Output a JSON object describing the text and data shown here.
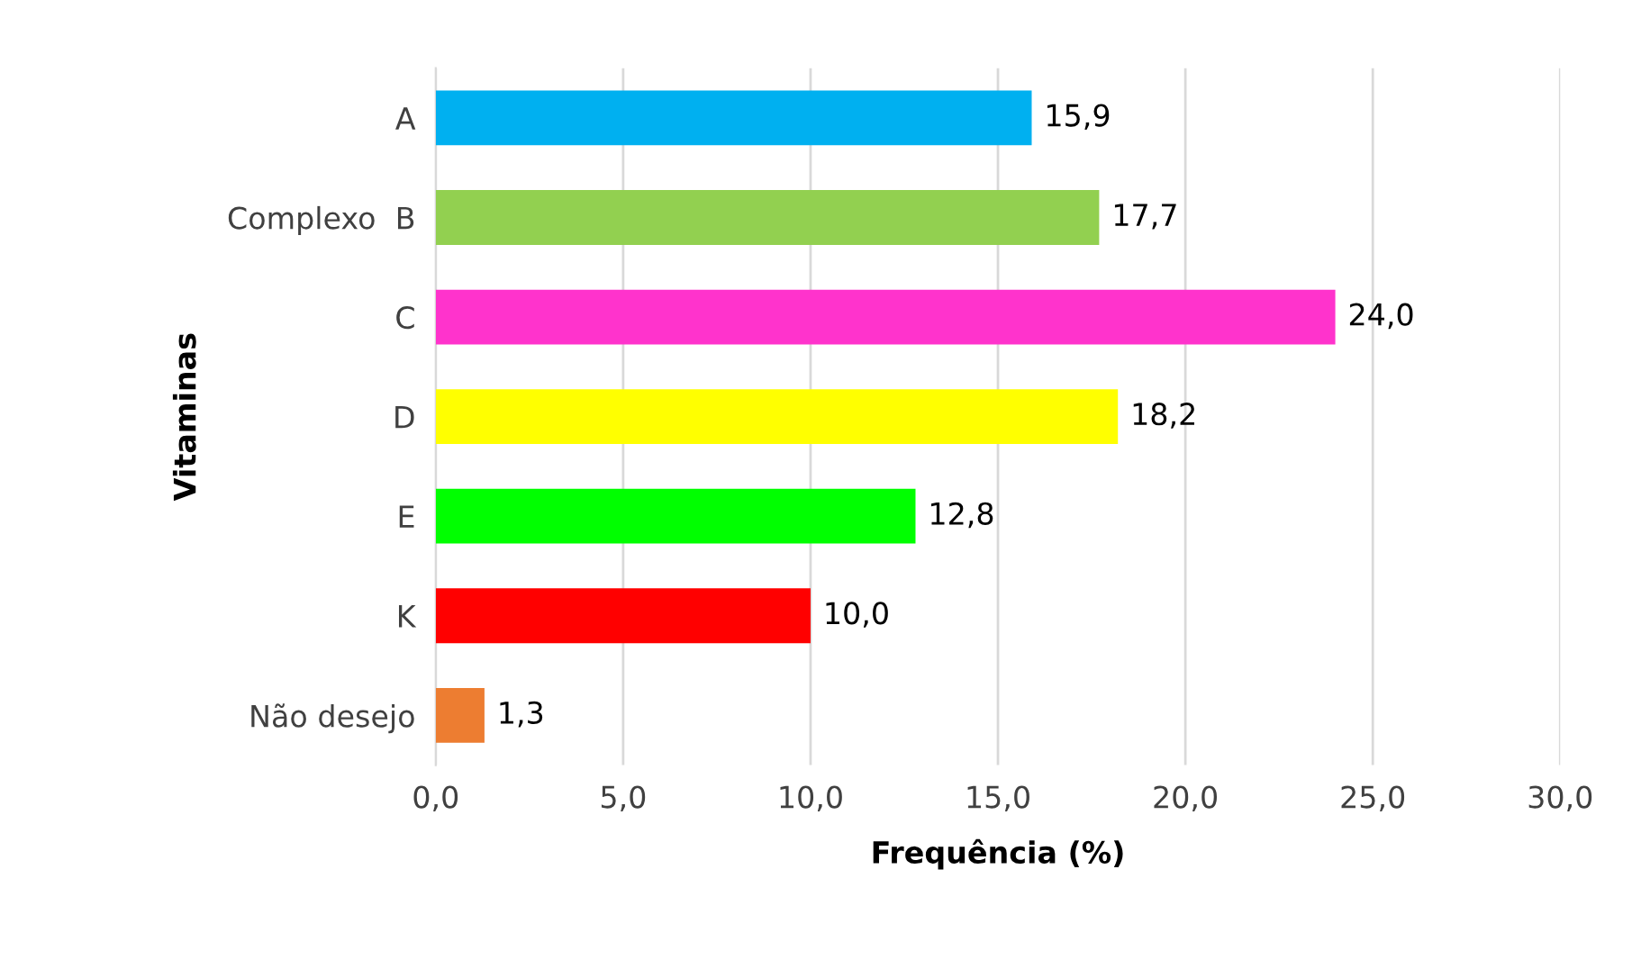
{
  "chart_data": {
    "type": "bar",
    "orientation": "horizontal",
    "xlabel": "Frequência (%)",
    "ylabel": "Vitaminas",
    "categories": [
      "A",
      "Complexo  B",
      "C",
      "D",
      "E",
      "K",
      "Não desejo"
    ],
    "values": [
      15.9,
      17.7,
      24.0,
      18.2,
      12.8,
      10.0,
      1.3
    ],
    "colors": [
      "#00b0f0",
      "#92d050",
      "#ff33cc",
      "#ffff00",
      "#00ff00",
      "#ff0000",
      "#ed7d31"
    ],
    "value_labels": [
      "15,9",
      "17,7",
      "24,0",
      "18,2",
      "12,8",
      "10,0",
      "1,3"
    ],
    "xlim": [
      0,
      30
    ],
    "xticks": [
      {
        "value": 0,
        "label": "0,0"
      },
      {
        "value": 5,
        "label": "5,0"
      },
      {
        "value": 10,
        "label": "10,0"
      },
      {
        "value": 15,
        "label": "15,0"
      },
      {
        "value": 20,
        "label": "20,0"
      },
      {
        "value": 25,
        "label": "25,0"
      },
      {
        "value": 30,
        "label": "30,0"
      }
    ],
    "grid": "x",
    "legend": false
  }
}
